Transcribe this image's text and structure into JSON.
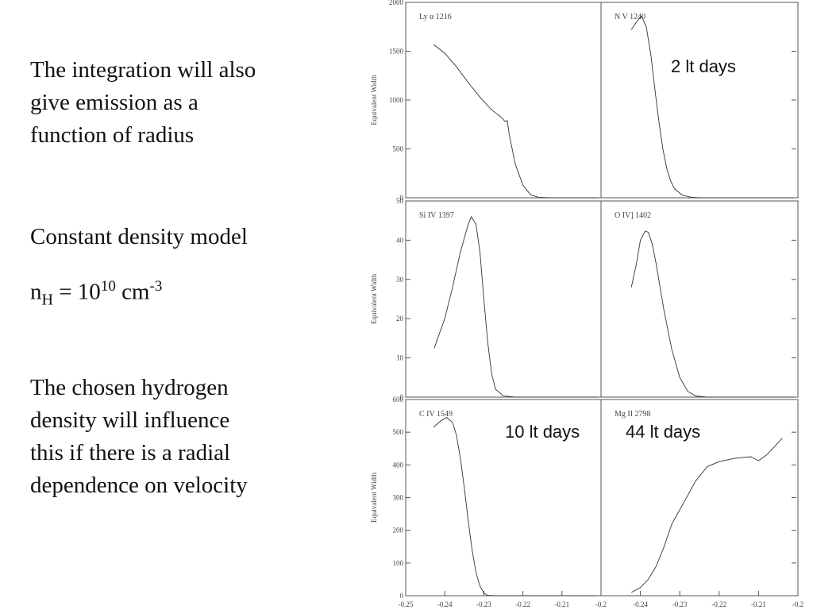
{
  "slide": {
    "paragraph1": [
      "The integration will also",
      "give emission as a",
      "function of radius"
    ],
    "paragraph2": "Constant density model",
    "formula": [
      "n",
      "H",
      " = 10",
      "10",
      " cm",
      "-3"
    ],
    "paragraph3": [
      "The chosen hydrogen",
      "density will influence",
      "this if there is a radial",
      "dependence on velocity"
    ]
  },
  "chart_data": [
    {
      "type": "line",
      "title": "Ly α 1216",
      "ylabel": "Equivalent Width",
      "color": "#333333",
      "x": [
        -0.2429,
        -0.24,
        -0.237,
        -0.234,
        -0.231,
        -0.228,
        -0.226,
        -0.2245,
        -0.224,
        -0.2235,
        -0.222,
        -0.22,
        -0.218,
        -0.216,
        -0.213,
        -0.21,
        -0.205,
        -0.201
      ],
      "values": [
        1570,
        1480,
        1340,
        1180,
        1030,
        900,
        840,
        780,
        790,
        650,
        350,
        130,
        30,
        5,
        0,
        0,
        0,
        0
      ],
      "xlim": [
        -0.25,
        -0.2
      ],
      "ylim": [
        0,
        2000
      ],
      "yticks": [
        0,
        500,
        1000,
        1500,
        2000
      ]
    },
    {
      "type": "line",
      "title": "N V 1240",
      "annotation": "2 lt days",
      "color": "#333333",
      "x": [
        -0.2423,
        -0.241,
        -0.2397,
        -0.2385,
        -0.2373,
        -0.2363,
        -0.2353,
        -0.2343,
        -0.2333,
        -0.2323,
        -0.2313,
        -0.2293,
        -0.227,
        -0.225,
        -0.201
      ],
      "values": [
        1720,
        1800,
        1860,
        1750,
        1450,
        1100,
        780,
        500,
        300,
        170,
        90,
        25,
        5,
        0,
        0
      ],
      "xlim": [
        -0.25,
        -0.2
      ],
      "ylim": [
        0,
        2000
      ]
    },
    {
      "type": "line",
      "title": "Si IV 1397",
      "ylabel": "Equivalent Width",
      "color": "#333333",
      "x": [
        -0.2427,
        -0.24,
        -0.238,
        -0.236,
        -0.234,
        -0.2332,
        -0.232,
        -0.231,
        -0.23,
        -0.229,
        -0.228,
        -0.227,
        -0.225,
        -0.222,
        -0.201
      ],
      "values": [
        12.5,
        20,
        28,
        37,
        44,
        46,
        44,
        37,
        25,
        14,
        6,
        2,
        0.3,
        0,
        0
      ],
      "xlim": [
        -0.25,
        -0.2
      ],
      "ylim": [
        0,
        50
      ],
      "yticks": [
        0,
        10,
        20,
        30,
        40,
        50
      ]
    },
    {
      "type": "line",
      "title": "O IV] 1402",
      "color": "#333333",
      "x": [
        -0.2423,
        -0.241,
        -0.24,
        -0.2388,
        -0.238,
        -0.237,
        -0.236,
        -0.235,
        -0.234,
        -0.232,
        -0.23,
        -0.228,
        -0.226,
        -0.223,
        -0.201
      ],
      "values": [
        28,
        34,
        40,
        42.3,
        42,
        39,
        34,
        28,
        22,
        12,
        5,
        1.5,
        0.3,
        0,
        0
      ],
      "xlim": [
        -0.25,
        -0.2
      ],
      "ylim": [
        0,
        50
      ]
    },
    {
      "type": "line",
      "title": "C IV 1549",
      "annotation": "10 lt days",
      "ylabel": "Equivalent Width",
      "color": "#333333",
      "x": [
        -0.2429,
        -0.241,
        -0.2395,
        -0.238,
        -0.237,
        -0.236,
        -0.235,
        -0.234,
        -0.233,
        -0.232,
        -0.231,
        -0.23,
        -0.229,
        -0.227,
        -0.201
      ],
      "values": [
        515,
        535,
        545,
        530,
        490,
        420,
        330,
        230,
        140,
        70,
        30,
        8,
        1,
        0,
        0
      ],
      "xlim": [
        -0.25,
        -0.2
      ],
      "ylim": [
        0,
        600
      ],
      "yticks": [
        0,
        100,
        200,
        300,
        400,
        500,
        600
      ],
      "xticks": [
        -0.25,
        -0.24,
        -0.23,
        -0.22,
        -0.21,
        -0.2
      ]
    },
    {
      "type": "line",
      "title": "Mg II 2798",
      "annotation": "44 lt days",
      "color": "#333333",
      "x": [
        -0.2423,
        -0.24,
        -0.238,
        -0.236,
        -0.234,
        -0.232,
        -0.2292,
        -0.226,
        -0.223,
        -0.22,
        -0.216,
        -0.212,
        -0.21,
        -0.208,
        -0.206,
        -0.204
      ],
      "values": [
        10,
        25,
        50,
        90,
        150,
        220,
        280,
        350,
        395,
        410,
        420,
        425,
        413,
        430,
        455,
        482
      ],
      "xlim": [
        -0.25,
        -0.2
      ],
      "ylim": [
        0,
        600
      ],
      "xticks": [
        -0.24,
        -0.23,
        -0.22,
        -0.21,
        -0.2
      ]
    }
  ]
}
